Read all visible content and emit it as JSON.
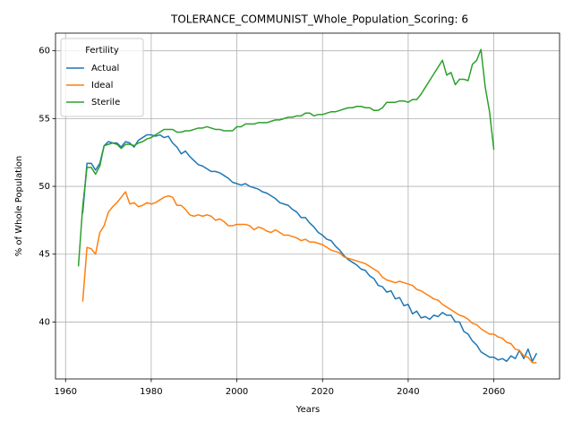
{
  "chart_data": {
    "type": "line",
    "title": "TOLERANCE_COMMUNIST_Whole_Population_Scoring: 6",
    "x_label": "Years",
    "y_label": "% of Whole Population",
    "legend_title": "Fertility",
    "legend": "upper left",
    "grid": true,
    "xlim": [
      1957.65,
      2075.35
    ],
    "ylim": [
      35.8,
      61.3
    ],
    "xticks": [
      1960,
      1980,
      2000,
      2020,
      2040,
      2060
    ],
    "yticks": [
      40,
      45,
      50,
      55,
      60
    ],
    "x": [
      1963,
      1964,
      1965,
      1966,
      1967,
      1968,
      1969,
      1970,
      1971,
      1972,
      1973,
      1974,
      1975,
      1976,
      1977,
      1978,
      1979,
      1980,
      1981,
      1982,
      1983,
      1984,
      1985,
      1986,
      1987,
      1988,
      1989,
      1990,
      1991,
      1992,
      1993,
      1994,
      1995,
      1996,
      1997,
      1998,
      1999,
      2000,
      2001,
      2002,
      2003,
      2004,
      2005,
      2006,
      2007,
      2008,
      2009,
      2010,
      2011,
      2012,
      2013,
      2014,
      2015,
      2016,
      2017,
      2018,
      2019,
      2020,
      2021,
      2022,
      2023,
      2024,
      2025,
      2026,
      2027,
      2028,
      2029,
      2030,
      2031,
      2032,
      2033,
      2034,
      2035,
      2036,
      2037,
      2038,
      2039,
      2040,
      2041,
      2042,
      2043,
      2044,
      2045,
      2046,
      2047,
      2048,
      2049,
      2050,
      2051,
      2052,
      2053,
      2054,
      2055,
      2056,
      2057,
      2058,
      2059,
      2060,
      2061,
      2062,
      2063,
      2064,
      2065,
      2066,
      2067,
      2068,
      2069,
      2070
    ],
    "series": [
      {
        "name": "Actual",
        "color": "#1f77b4",
        "values": [
          null,
          48.0,
          51.7,
          51.7,
          51.2,
          51.7,
          53.0,
          53.3,
          53.2,
          53.2,
          52.9,
          53.3,
          53.2,
          52.9,
          53.4,
          53.6,
          53.8,
          53.8,
          53.7,
          53.8,
          53.6,
          53.7,
          53.2,
          52.9,
          52.4,
          52.6,
          52.2,
          51.9,
          51.6,
          51.5,
          51.3,
          51.1,
          51.1,
          51.0,
          50.8,
          50.6,
          50.3,
          50.2,
          50.1,
          50.2,
          50.0,
          49.9,
          49.8,
          49.6,
          49.5,
          49.3,
          49.1,
          48.8,
          48.7,
          48.6,
          48.3,
          48.1,
          47.7,
          47.7,
          47.3,
          47.0,
          46.6,
          46.4,
          46.1,
          46.0,
          45.6,
          45.3,
          44.9,
          44.6,
          44.4,
          44.2,
          43.9,
          43.8,
          43.4,
          43.2,
          42.7,
          42.6,
          42.2,
          42.3,
          41.7,
          41.8,
          41.2,
          41.3,
          40.6,
          40.8,
          40.3,
          40.4,
          40.2,
          40.5,
          40.4,
          40.7,
          40.5,
          40.5,
          40.0,
          40.0,
          39.3,
          39.1,
          38.6,
          38.3,
          37.8,
          37.6,
          37.4,
          37.4,
          37.2,
          37.3,
          37.1,
          37.5,
          37.3,
          37.9,
          37.3,
          38.0,
          37.1,
          37.7
        ]
      },
      {
        "name": "Ideal",
        "color": "#ff7f0e",
        "values": [
          null,
          41.5,
          45.5,
          45.4,
          45.0,
          46.6,
          47.1,
          48.1,
          48.5,
          48.8,
          49.2,
          49.6,
          48.7,
          48.8,
          48.5,
          48.6,
          48.8,
          48.7,
          48.8,
          49.0,
          49.2,
          49.3,
          49.2,
          48.6,
          48.6,
          48.3,
          47.9,
          47.8,
          47.9,
          47.8,
          47.9,
          47.8,
          47.5,
          47.6,
          47.4,
          47.1,
          47.1,
          47.2,
          47.2,
          47.2,
          47.1,
          46.8,
          47.0,
          46.9,
          46.7,
          46.6,
          46.8,
          46.6,
          46.4,
          46.4,
          46.3,
          46.2,
          46.0,
          46.1,
          45.9,
          45.9,
          45.8,
          45.7,
          45.5,
          45.3,
          45.2,
          45.1,
          44.8,
          44.7,
          44.6,
          44.5,
          44.4,
          44.3,
          44.1,
          43.9,
          43.7,
          43.3,
          43.1,
          43.0,
          42.9,
          43.0,
          42.9,
          42.8,
          42.7,
          42.4,
          42.3,
          42.1,
          41.9,
          41.7,
          41.6,
          41.3,
          41.1,
          40.9,
          40.7,
          40.5,
          40.4,
          40.2,
          39.9,
          39.8,
          39.5,
          39.3,
          39.1,
          39.1,
          38.9,
          38.8,
          38.5,
          38.4,
          38.0,
          37.9,
          37.5,
          37.4,
          37.0,
          37.0
        ]
      },
      {
        "name": "Sterile",
        "color": "#2ca02c",
        "values": [
          44.1,
          48.5,
          51.4,
          51.4,
          50.9,
          51.5,
          53.0,
          53.1,
          53.2,
          53.1,
          52.8,
          53.1,
          53.1,
          53.0,
          53.2,
          53.3,
          53.5,
          53.6,
          53.8,
          54.0,
          54.2,
          54.2,
          54.2,
          54.0,
          54.0,
          54.1,
          54.1,
          54.2,
          54.3,
          54.3,
          54.4,
          54.3,
          54.2,
          54.2,
          54.1,
          54.1,
          54.1,
          54.4,
          54.4,
          54.6,
          54.6,
          54.6,
          54.7,
          54.7,
          54.7,
          54.8,
          54.9,
          54.9,
          55.0,
          55.1,
          55.1,
          55.2,
          55.2,
          55.4,
          55.4,
          55.2,
          55.3,
          55.3,
          55.4,
          55.5,
          55.5,
          55.6,
          55.7,
          55.8,
          55.8,
          55.9,
          55.9,
          55.8,
          55.8,
          55.6,
          55.6,
          55.8,
          56.2,
          56.2,
          56.2,
          56.3,
          56.3,
          56.2,
          56.4,
          56.4,
          56.8,
          57.3,
          57.8,
          58.3,
          58.8,
          59.3,
          58.2,
          58.4,
          57.5,
          57.9,
          57.9,
          57.8,
          59.0,
          59.3,
          60.1,
          57.3,
          55.5,
          52.7,
          null,
          null,
          null,
          null,
          null,
          null,
          null,
          null,
          null,
          null
        ]
      }
    ]
  }
}
